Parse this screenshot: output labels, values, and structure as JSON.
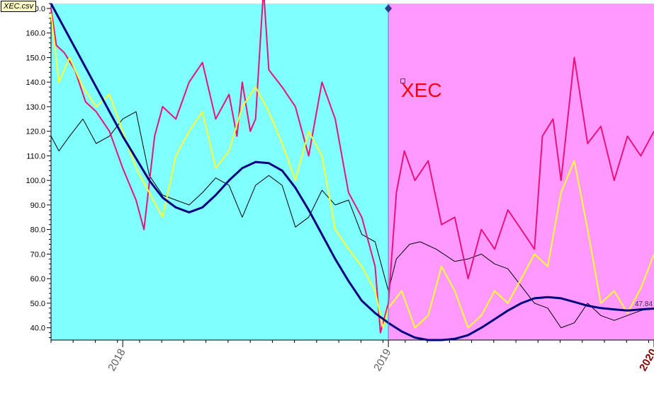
{
  "file_tag": "XEC.csv",
  "ticker": "XEC",
  "last_value": "47.84",
  "colors": {
    "history_bg": "#80ffff",
    "forecast_bg": "#ff99ff",
    "price": "#000000",
    "upper": "#e8137a",
    "middle": "#ffff33",
    "trend": "#000080",
    "divider": "#5f7fc0"
  },
  "chart_data": {
    "type": "line",
    "title": "XEC",
    "xlabel": "",
    "ylabel": "",
    "x_domain": [
      2017.73,
      2020.0
    ],
    "ylim": [
      35,
      172
    ],
    "y_ticks": [
      "40.0",
      "50.0",
      "60.0",
      "70.0",
      "80.0",
      "90.0",
      "100.0",
      "110.0",
      "120.0",
      "130.0",
      "140.0",
      "150.0",
      "160.0",
      "170.0"
    ],
    "x_ticks": [
      {
        "x": 2018,
        "label": "2018"
      },
      {
        "x": 2019,
        "label": "2019"
      },
      {
        "x": 2020,
        "label": "2020"
      }
    ],
    "forecast_start": 2019,
    "series": [
      {
        "key": "price",
        "x": [
          2017.73,
          2017.76,
          2017.8,
          2017.85,
          2017.9,
          2017.95,
          2018.0,
          2018.05,
          2018.1,
          2018.15,
          2018.2,
          2018.25,
          2018.3,
          2018.35,
          2018.4,
          2018.45,
          2018.5,
          2018.55,
          2018.6,
          2018.65,
          2018.7,
          2018.75,
          2018.8,
          2018.85,
          2018.9,
          2018.95,
          2019.0,
          2019.03,
          2019.08,
          2019.12,
          2019.18,
          2019.25,
          2019.3,
          2019.35,
          2019.4,
          2019.45,
          2019.5,
          2019.55,
          2019.6,
          2019.65,
          2019.7,
          2019.75,
          2019.8,
          2019.85,
          2019.9,
          2019.95,
          2020.0
        ],
        "y": [
          118,
          112,
          118,
          125,
          115,
          118,
          125,
          128,
          102,
          94,
          92,
          90,
          95,
          101,
          98,
          85,
          98,
          102,
          98,
          81,
          85,
          96,
          90,
          92,
          78,
          75,
          55,
          68,
          74,
          75,
          72,
          67,
          68,
          70,
          66,
          64,
          57,
          50,
          48,
          40,
          42,
          50,
          45,
          43,
          45,
          47,
          48
        ]
      },
      {
        "key": "upper",
        "x": [
          2017.73,
          2017.75,
          2017.78,
          2017.82,
          2017.86,
          2017.9,
          2017.95,
          2018.0,
          2018.05,
          2018.08,
          2018.12,
          2018.15,
          2018.2,
          2018.25,
          2018.3,
          2018.35,
          2018.4,
          2018.43,
          2018.45,
          2018.48,
          2018.5,
          2018.53,
          2018.55,
          2018.6,
          2018.65,
          2018.7,
          2018.75,
          2018.8,
          2018.85,
          2018.9,
          2018.95,
          2018.97,
          2019.0,
          2019.03,
          2019.06,
          2019.1,
          2019.15,
          2019.2,
          2019.25,
          2019.3,
          2019.35,
          2019.4,
          2019.45,
          2019.5,
          2019.55,
          2019.58,
          2019.62,
          2019.65,
          2019.7,
          2019.75,
          2019.8,
          2019.85,
          2019.9,
          2019.95,
          2020.0
        ],
        "y": [
          170,
          155,
          152,
          145,
          132,
          128,
          120,
          105,
          92,
          80,
          118,
          130,
          125,
          140,
          148,
          125,
          135,
          118,
          140,
          120,
          125,
          178,
          145,
          138,
          130,
          110,
          140,
          125,
          95,
          85,
          65,
          38,
          50,
          95,
          112,
          100,
          108,
          82,
          85,
          60,
          80,
          72,
          88,
          80,
          72,
          118,
          125,
          100,
          150,
          115,
          122,
          100,
          118,
          110,
          120
        ]
      },
      {
        "key": "middle",
        "x": [
          2017.73,
          2017.76,
          2017.8,
          2017.85,
          2017.9,
          2017.95,
          2018.0,
          2018.05,
          2018.1,
          2018.15,
          2018.2,
          2018.25,
          2018.3,
          2018.35,
          2018.4,
          2018.45,
          2018.5,
          2018.55,
          2018.6,
          2018.65,
          2018.7,
          2018.75,
          2018.8,
          2018.85,
          2018.9,
          2018.95,
          2018.98,
          2019.0,
          2019.05,
          2019.1,
          2019.15,
          2019.2,
          2019.25,
          2019.3,
          2019.35,
          2019.4,
          2019.45,
          2019.5,
          2019.55,
          2019.6,
          2019.65,
          2019.7,
          2019.75,
          2019.8,
          2019.85,
          2019.9,
          2019.95,
          2020.0
        ],
        "y": [
          168,
          140,
          150,
          138,
          130,
          135,
          120,
          105,
          95,
          85,
          110,
          120,
          128,
          105,
          112,
          130,
          138,
          128,
          115,
          100,
          120,
          110,
          80,
          72,
          65,
          55,
          40,
          48,
          55,
          40,
          45,
          65,
          55,
          40,
          45,
          55,
          50,
          60,
          70,
          65,
          95,
          108,
          80,
          50,
          55,
          46,
          56,
          70
        ]
      },
      {
        "key": "trend",
        "x": [
          2017.73,
          2017.8,
          2017.9,
          2018.0,
          2018.1,
          2018.15,
          2018.2,
          2018.25,
          2018.3,
          2018.35,
          2018.4,
          2018.45,
          2018.5,
          2018.55,
          2018.6,
          2018.65,
          2018.7,
          2018.75,
          2018.8,
          2018.85,
          2018.9,
          2018.95,
          2019.0,
          2019.05,
          2019.1,
          2019.15,
          2019.2,
          2019.25,
          2019.3,
          2019.35,
          2019.4,
          2019.45,
          2019.5,
          2019.55,
          2019.6,
          2019.65,
          2019.7,
          2019.75,
          2019.8,
          2019.85,
          2019.9,
          2019.95,
          2020.0
        ],
        "y": [
          172,
          158,
          138,
          118,
          100,
          93,
          89,
          87,
          89,
          94,
          100,
          105,
          107.5,
          107,
          104,
          97,
          88,
          78,
          68,
          59,
          51,
          46,
          42,
          38.5,
          36,
          35,
          35,
          35.5,
          37,
          40,
          43.5,
          47,
          50,
          52,
          52.5,
          52,
          50.5,
          49,
          48,
          47.5,
          47,
          47.5,
          47.8
        ]
      }
    ]
  }
}
